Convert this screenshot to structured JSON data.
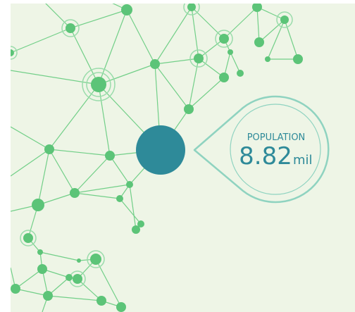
{
  "callout": {
    "label": "POPULATION",
    "value": 8.82,
    "unit": "mil"
  }
}
